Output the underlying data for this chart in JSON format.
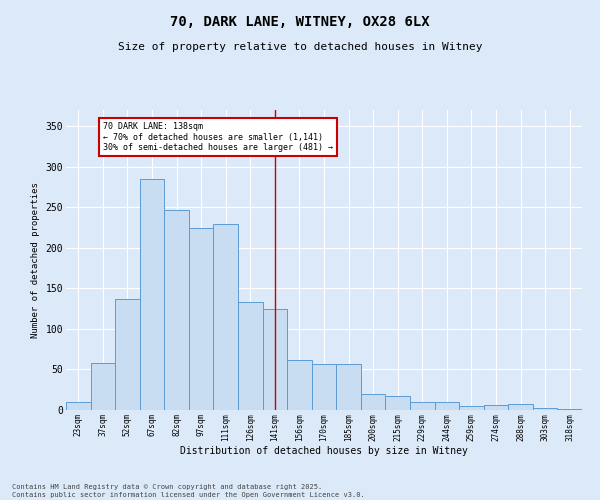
{
  "title_line1": "70, DARK LANE, WITNEY, OX28 6LX",
  "title_line2": "Size of property relative to detached houses in Witney",
  "xlabel": "Distribution of detached houses by size in Witney",
  "ylabel": "Number of detached properties",
  "categories": [
    "23sqm",
    "37sqm",
    "52sqm",
    "67sqm",
    "82sqm",
    "97sqm",
    "111sqm",
    "126sqm",
    "141sqm",
    "156sqm",
    "170sqm",
    "185sqm",
    "200sqm",
    "215sqm",
    "229sqm",
    "244sqm",
    "259sqm",
    "274sqm",
    "288sqm",
    "303sqm",
    "318sqm"
  ],
  "values": [
    10,
    58,
    137,
    285,
    247,
    225,
    230,
    133,
    125,
    62,
    57,
    57,
    20,
    17,
    10,
    10,
    5,
    6,
    7,
    2,
    1
  ],
  "bar_color": "#c9ddf2",
  "bar_edge_color": "#5b9bd5",
  "vline_x_index": 8,
  "vline_color": "#cc0000",
  "annotation_text": "70 DARK LANE: 138sqm\n← 70% of detached houses are smaller (1,141)\n30% of semi-detached houses are larger (481) →",
  "annotation_box_color": "#cc0000",
  "background_color": "#dce9f8",
  "grid_color": "#ffffff",
  "footer_line1": "Contains HM Land Registry data © Crown copyright and database right 2025.",
  "footer_line2": "Contains public sector information licensed under the Open Government Licence v3.0.",
  "ylim": [
    0,
    370
  ],
  "yticks": [
    0,
    50,
    100,
    150,
    200,
    250,
    300,
    350
  ]
}
